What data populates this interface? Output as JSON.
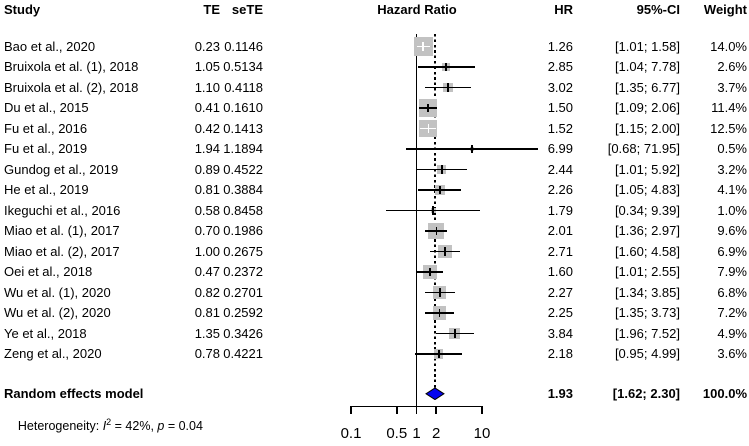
{
  "header": {
    "study": "Study",
    "te": "TE",
    "sete": "seTE",
    "hazard_ratio": "Hazard Ratio",
    "hr": "HR",
    "ci": "95%-CI",
    "weight": "Weight"
  },
  "chart_data": {
    "type": "forest",
    "title": "Hazard Ratio",
    "x_axis": {
      "scale": "log10",
      "ticks": [
        0.1,
        0.5,
        1,
        2,
        10
      ],
      "tick_labels": [
        "0.1",
        "0.5",
        "1",
        "2",
        "10"
      ],
      "range": [
        0.1,
        10
      ]
    },
    "reference_line": 1,
    "dashed_line_at": 1.93,
    "studies": [
      {
        "study": "Bao et al., 2020",
        "te": "0.23",
        "sete": "0.1146",
        "hr": 1.26,
        "lo": 1.01,
        "hi": 1.58,
        "hr_label": "1.26",
        "ci_label": "[1.01; 1.58]",
        "weight": 14.0,
        "weight_label": "14.0%"
      },
      {
        "study": "Bruixola et al. (1), 2018",
        "te": "1.05",
        "sete": "0.5134",
        "hr": 2.85,
        "lo": 1.04,
        "hi": 7.78,
        "hr_label": "2.85",
        "ci_label": "[1.04; 7.78]",
        "weight": 2.6,
        "weight_label": "2.6%"
      },
      {
        "study": "Bruixola et al. (2), 2018",
        "te": "1.10",
        "sete": "0.4118",
        "hr": 3.02,
        "lo": 1.35,
        "hi": 6.77,
        "hr_label": "3.02",
        "ci_label": "[1.35; 6.77]",
        "weight": 3.7,
        "weight_label": "3.7%"
      },
      {
        "study": "Du et al., 2015",
        "te": "0.41",
        "sete": "0.1610",
        "hr": 1.5,
        "lo": 1.09,
        "hi": 2.06,
        "hr_label": "1.50",
        "ci_label": "[1.09; 2.06]",
        "weight": 11.4,
        "weight_label": "11.4%"
      },
      {
        "study": "Fu et al., 2016",
        "te": "0.42",
        "sete": "0.1413",
        "hr": 1.52,
        "lo": 1.15,
        "hi": 2.0,
        "hr_label": "1.52",
        "ci_label": "[1.15; 2.00]",
        "weight": 12.5,
        "weight_label": "12.5%"
      },
      {
        "study": "Fu et al., 2019",
        "te": "1.94",
        "sete": "1.1894",
        "hr": 6.99,
        "lo": 0.68,
        "hi": 71.95,
        "hr_label": "6.99",
        "ci_label": "[0.68; 71.95]",
        "weight": 0.5,
        "weight_label": "0.5%"
      },
      {
        "study": "Gundog et al., 2019",
        "te": "0.89",
        "sete": "0.4522",
        "hr": 2.44,
        "lo": 1.01,
        "hi": 5.92,
        "hr_label": "2.44",
        "ci_label": "[1.01; 5.92]",
        "weight": 3.2,
        "weight_label": "3.2%"
      },
      {
        "study": "He et al., 2019",
        "te": "0.81",
        "sete": "0.3884",
        "hr": 2.26,
        "lo": 1.05,
        "hi": 4.83,
        "hr_label": "2.26",
        "ci_label": "[1.05; 4.83]",
        "weight": 4.1,
        "weight_label": "4.1%"
      },
      {
        "study": "Ikeguchi et al., 2016",
        "te": "0.58",
        "sete": "0.8458",
        "hr": 1.79,
        "lo": 0.34,
        "hi": 9.39,
        "hr_label": "1.79",
        "ci_label": "[0.34; 9.39]",
        "weight": 1.0,
        "weight_label": "1.0%"
      },
      {
        "study": "Miao et al. (1), 2017",
        "te": "0.70",
        "sete": "0.1986",
        "hr": 2.01,
        "lo": 1.36,
        "hi": 2.97,
        "hr_label": "2.01",
        "ci_label": "[1.36; 2.97]",
        "weight": 9.6,
        "weight_label": "9.6%"
      },
      {
        "study": "Miao et al. (2), 2017",
        "te": "1.00",
        "sete": "0.2675",
        "hr": 2.71,
        "lo": 1.6,
        "hi": 4.58,
        "hr_label": "2.71",
        "ci_label": "[1.60; 4.58]",
        "weight": 6.9,
        "weight_label": "6.9%"
      },
      {
        "study": "Oei et al., 2018",
        "te": "0.47",
        "sete": "0.2372",
        "hr": 1.6,
        "lo": 1.01,
        "hi": 2.55,
        "hr_label": "1.60",
        "ci_label": "[1.01; 2.55]",
        "weight": 7.9,
        "weight_label": "7.9%"
      },
      {
        "study": "Wu et al. (1), 2020",
        "te": "0.82",
        "sete": "0.2701",
        "hr": 2.27,
        "lo": 1.34,
        "hi": 3.85,
        "hr_label": "2.27",
        "ci_label": "[1.34; 3.85]",
        "weight": 6.8,
        "weight_label": "6.8%"
      },
      {
        "study": "Wu et al. (2), 2020",
        "te": "0.81",
        "sete": "0.2592",
        "hr": 2.25,
        "lo": 1.35,
        "hi": 3.73,
        "hr_label": "2.25",
        "ci_label": "[1.35; 3.73]",
        "weight": 7.2,
        "weight_label": "7.2%"
      },
      {
        "study": "Ye et al., 2018",
        "te": "1.35",
        "sete": "0.3426",
        "hr": 3.84,
        "lo": 1.96,
        "hi": 7.52,
        "hr_label": "3.84",
        "ci_label": "[1.96; 7.52]",
        "weight": 4.9,
        "weight_label": "4.9%"
      },
      {
        "study": "Zeng et al., 2020",
        "te": "0.78",
        "sete": "0.4221",
        "hr": 2.18,
        "lo": 0.95,
        "hi": 4.99,
        "hr_label": "2.18",
        "ci_label": "[0.95; 4.99]",
        "weight": 3.6,
        "weight_label": "3.6%"
      }
    ],
    "summary": {
      "label": "Random effects model",
      "hr": 1.93,
      "lo": 1.62,
      "hi": 2.3,
      "hr_label": "1.93",
      "ci_label": "[1.62; 2.30]",
      "weight_label": "100.0%"
    },
    "heterogeneity": {
      "prefix": "Heterogeneity: ",
      "stat": "I",
      "sup": "2",
      "mid": " = 42%, ",
      "p": "p",
      "end": " = 0.04"
    },
    "colors": {
      "square": "#c2c2c2",
      "diamond": "#0505ee",
      "line": "#000000"
    }
  }
}
